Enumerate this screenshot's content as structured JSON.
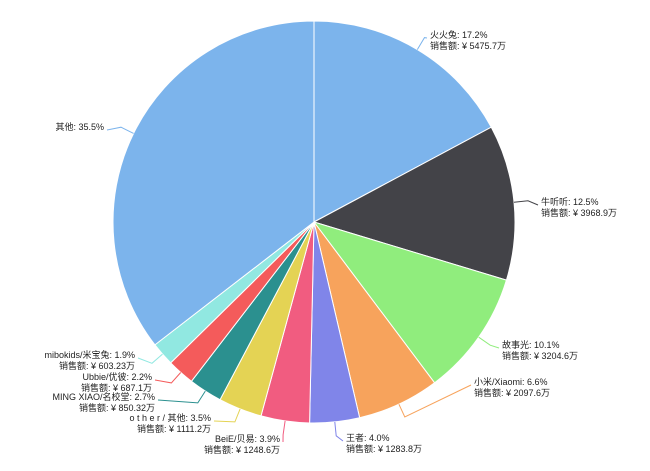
{
  "chart_data": {
    "type": "pie",
    "title": "",
    "slices": [
      {
        "name": "火火兔",
        "percent": "17.2%",
        "value": 17.2,
        "sales_label": "销售额",
        "sales": "¥ 5475.7万",
        "color": "#7cb4ec"
      },
      {
        "name": "牛听听",
        "percent": "12.5%",
        "value": 12.5,
        "sales_label": "销售额",
        "sales": "¥ 3968.9万",
        "color": "#434348"
      },
      {
        "name": "故事光",
        "percent": "10.1%",
        "value": 10.1,
        "sales_label": "销售额",
        "sales": "¥ 3204.6万",
        "color": "#90ed7d"
      },
      {
        "name": "小米/Xiaomi",
        "percent": "6.6%",
        "value": 6.6,
        "sales_label": "销售额",
        "sales": "¥ 2097.6万",
        "color": "#f7a35c"
      },
      {
        "name": "王者",
        "percent": "4.0%",
        "value": 4.0,
        "sales_label": "销售额",
        "sales": "¥ 1283.8万",
        "color": "#8085e9"
      },
      {
        "name": "BeiE/贝易",
        "percent": "3.9%",
        "value": 3.9,
        "sales_label": "销售额",
        "sales": "¥ 1248.6万",
        "color": "#f15c80"
      },
      {
        "name": "o t h e r / 其他",
        "percent": "3.5%",
        "value": 3.5,
        "sales_label": "销售额",
        "sales": "¥ 1111.2万",
        "color": "#e4d354"
      },
      {
        "name": "MING XIAO/名校堂",
        "percent": "2.7%",
        "value": 2.7,
        "sales_label": "销售额",
        "sales": "¥ 850.32万",
        "color": "#2b908f"
      },
      {
        "name": "Ubbie/优彼",
        "percent": "2.2%",
        "value": 2.2,
        "sales_label": "销售额",
        "sales": "¥ 687.1万",
        "color": "#f45b5b"
      },
      {
        "name": "mibokids/米宝兔",
        "percent": "1.9%",
        "value": 1.9,
        "sales_label": "销售额",
        "sales": "¥ 603.23万",
        "color": "#91e8e1"
      },
      {
        "name": "其他",
        "percent": "35.5%",
        "value": 35.5,
        "color": "#7cb4ec"
      }
    ]
  }
}
